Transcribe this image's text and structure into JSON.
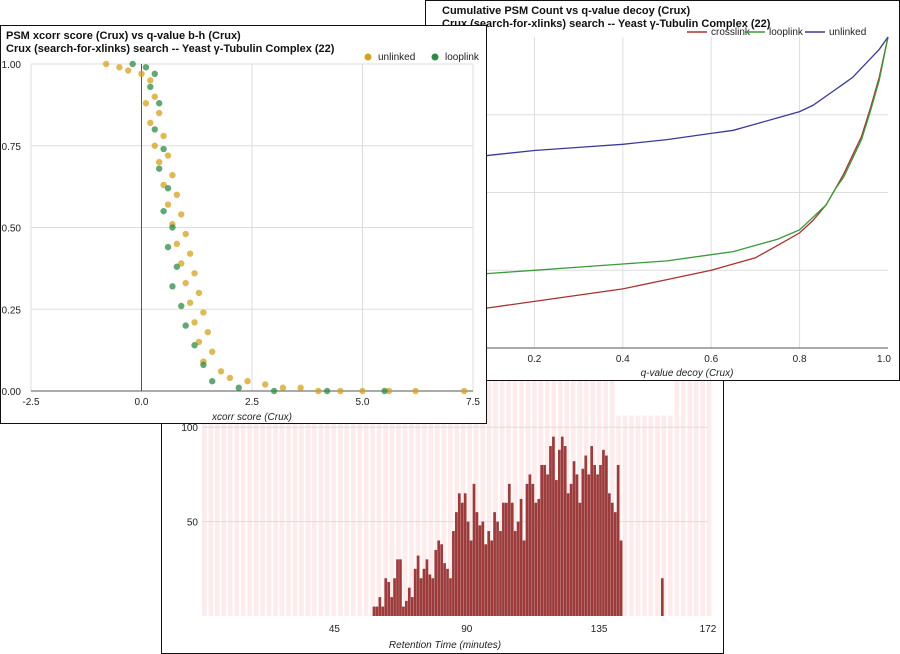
{
  "windows": {
    "histogram": {
      "xlabel": "Retention Time (minutes)",
      "xticks": [
        "45",
        "90",
        "135",
        "172"
      ],
      "yticks": [
        "100",
        "50"
      ]
    },
    "cumulative": {
      "title_line1": "Cumulative PSM Count vs q-value decoy (Crux)",
      "title_line2": "Crux (search-for-xlinks) search -- Yeast γ-Tubulin Complex (22)",
      "xlabel": "q-value decoy (Crux)",
      "xticks": [
        "0.2",
        "0.4",
        "0.6",
        "0.8",
        "1.0"
      ],
      "legend": [
        {
          "name": "crosslink",
          "color": "#a83232"
        },
        {
          "name": "looplink",
          "color": "#3a9a3a"
        },
        {
          "name": "unlinked",
          "color": "#3a3a96"
        }
      ]
    },
    "scatter": {
      "title_line1": "PSM xcorr score (Crux) vs q-value b-h (Crux)",
      "title_line2": "Crux (search-for-xlinks) search -- Yeast γ-Tubulin Complex (22)",
      "xlabel": "xcorr score (Crux)",
      "xticks": [
        "-2.5",
        "0.0",
        "2.5",
        "5.0",
        "7.5"
      ],
      "yticks": [
        "1.00",
        "0.75",
        "0.50",
        "0.25",
        "0.00"
      ],
      "legend": [
        {
          "name": "unlinked",
          "color": "#d4a21f"
        },
        {
          "name": "looplink",
          "color": "#2e8b46"
        }
      ]
    }
  },
  "chart_data": [
    {
      "type": "bar",
      "xlabel": "Retention Time (minutes)",
      "ylabel": "",
      "xlim": [
        0,
        172
      ],
      "ylim": [
        0,
        125
      ],
      "bar_color": "#9b3b3b",
      "background_color": "#fde4e4",
      "categories": [
        58,
        59,
        60,
        61,
        62,
        63,
        64,
        65,
        66,
        67,
        68,
        69,
        70,
        71,
        72,
        73,
        74,
        75,
        76,
        77,
        78,
        79,
        80,
        81,
        82,
        83,
        84,
        85,
        86,
        87,
        88,
        89,
        90,
        91,
        92,
        93,
        94,
        95,
        96,
        97,
        98,
        99,
        100,
        101,
        102,
        103,
        104,
        105,
        106,
        107,
        108,
        109,
        110,
        111,
        112,
        113,
        114,
        115,
        116,
        117,
        118,
        119,
        120,
        121,
        122,
        123,
        124,
        125,
        126,
        127,
        128,
        129,
        130,
        131,
        132,
        133,
        134,
        135,
        136,
        137,
        138,
        139,
        140,
        141,
        142,
        143,
        144,
        145,
        146,
        147,
        148,
        149,
        150,
        151,
        152,
        153,
        154,
        155,
        156,
        157,
        158,
        159,
        160,
        161,
        162,
        163,
        164
      ],
      "values": [
        5,
        5,
        10,
        5,
        20,
        18,
        10,
        20,
        30,
        30,
        5,
        8,
        15,
        10,
        25,
        32,
        20,
        25,
        30,
        22,
        20,
        35,
        40,
        38,
        28,
        25,
        20,
        45,
        55,
        65,
        60,
        65,
        50,
        40,
        70,
        55,
        48,
        50,
        38,
        45,
        40,
        55,
        50,
        45,
        60,
        60,
        70,
        60,
        45,
        50,
        62,
        40,
        70,
        75,
        70,
        60,
        62,
        80,
        80,
        75,
        90,
        95,
        72,
        88,
        95,
        90,
        65,
        70,
        82,
        75,
        60,
        78,
        85,
        75,
        90,
        80,
        75,
        80,
        88,
        85,
        65,
        60,
        55,
        80,
        40,
        0,
        0,
        0,
        0,
        0,
        0,
        0,
        0,
        0,
        0,
        0,
        0,
        0,
        20,
        0,
        0,
        0,
        0,
        0,
        0,
        0,
        0
      ]
    },
    {
      "type": "line",
      "title": "Cumulative PSM Count vs q-value decoy (Crux)",
      "subtitle": "Crux (search-for-xlinks) search -- Yeast γ-Tubulin Complex (22)",
      "xlabel": "q-value decoy (Crux)",
      "xlim": [
        0,
        1
      ],
      "ylim": [
        0,
        1
      ],
      "legend_position": "top-right",
      "series": [
        {
          "name": "crosslink",
          "color": "#a83232",
          "x": [
            0,
            0.05,
            0.1,
            0.2,
            0.3,
            0.4,
            0.5,
            0.6,
            0.65,
            0.7,
            0.75,
            0.8,
            0.83,
            0.86,
            0.88,
            0.9,
            0.92,
            0.94,
            0.96,
            0.98,
            1.0
          ],
          "y": [
            0.11,
            0.12,
            0.13,
            0.15,
            0.17,
            0.19,
            0.22,
            0.25,
            0.27,
            0.29,
            0.33,
            0.37,
            0.41,
            0.46,
            0.51,
            0.56,
            0.62,
            0.68,
            0.77,
            0.87,
            1.0
          ]
        },
        {
          "name": "looplink",
          "color": "#3a9a3a",
          "x": [
            0,
            0.05,
            0.1,
            0.2,
            0.3,
            0.4,
            0.5,
            0.6,
            0.65,
            0.7,
            0.75,
            0.8,
            0.83,
            0.86,
            0.88,
            0.9,
            0.92,
            0.94,
            0.96,
            0.98,
            1.0
          ],
          "y": [
            0.23,
            0.235,
            0.24,
            0.25,
            0.26,
            0.27,
            0.28,
            0.3,
            0.31,
            0.33,
            0.35,
            0.38,
            0.42,
            0.46,
            0.51,
            0.55,
            0.61,
            0.67,
            0.76,
            0.86,
            1.0
          ]
        },
        {
          "name": "unlinked",
          "color": "#3a3a96",
          "x": [
            0,
            0.05,
            0.1,
            0.2,
            0.3,
            0.4,
            0.5,
            0.6,
            0.65,
            0.7,
            0.75,
            0.8,
            0.83,
            0.86,
            0.88,
            0.9,
            0.92,
            0.94,
            0.96,
            0.98,
            1.0
          ],
          "y": [
            0.6,
            0.61,
            0.62,
            0.635,
            0.645,
            0.655,
            0.67,
            0.69,
            0.7,
            0.72,
            0.74,
            0.76,
            0.78,
            0.81,
            0.83,
            0.85,
            0.87,
            0.9,
            0.93,
            0.96,
            1.0
          ]
        }
      ]
    },
    {
      "type": "scatter",
      "title": "PSM xcorr score (Crux) vs q-value b-h (Crux)",
      "subtitle": "Crux (search-for-xlinks) search -- Yeast γ-Tubulin Complex (22)",
      "xlabel": "xcorr score (Crux)",
      "xlim": [
        -2.5,
        7.5
      ],
      "ylim": [
        0,
        1
      ],
      "legend_position": "top-right",
      "series": [
        {
          "name": "unlinked",
          "color": "#d4a21f",
          "points": [
            [
              -0.8,
              1.0
            ],
            [
              -0.5,
              0.99
            ],
            [
              -0.3,
              0.98
            ],
            [
              0,
              0.97
            ],
            [
              0.2,
              0.95
            ],
            [
              0.3,
              0.9
            ],
            [
              0.1,
              0.88
            ],
            [
              0.4,
              0.85
            ],
            [
              0.2,
              0.82
            ],
            [
              0.5,
              0.78
            ],
            [
              0.3,
              0.75
            ],
            [
              0.6,
              0.72
            ],
            [
              0.4,
              0.7
            ],
            [
              0.7,
              0.66
            ],
            [
              0.5,
              0.63
            ],
            [
              0.8,
              0.6
            ],
            [
              0.6,
              0.57
            ],
            [
              0.9,
              0.54
            ],
            [
              0.7,
              0.51
            ],
            [
              1.0,
              0.48
            ],
            [
              0.8,
              0.45
            ],
            [
              1.1,
              0.42
            ],
            [
              0.9,
              0.39
            ],
            [
              1.2,
              0.36
            ],
            [
              1.0,
              0.33
            ],
            [
              1.3,
              0.3
            ],
            [
              1.1,
              0.27
            ],
            [
              1.4,
              0.24
            ],
            [
              1.2,
              0.21
            ],
            [
              1.5,
              0.18
            ],
            [
              1.3,
              0.15
            ],
            [
              1.6,
              0.12
            ],
            [
              1.4,
              0.09
            ],
            [
              1.8,
              0.06
            ],
            [
              2.0,
              0.04
            ],
            [
              2.4,
              0.03
            ],
            [
              2.8,
              0.02
            ],
            [
              3.2,
              0.01
            ],
            [
              3.6,
              0.01
            ],
            [
              4.0,
              0.0
            ],
            [
              4.5,
              0.0
            ],
            [
              5.0,
              0.0
            ],
            [
              5.6,
              0.0
            ],
            [
              6.2,
              0.0
            ],
            [
              7.3,
              0.0
            ]
          ]
        },
        {
          "name": "looplink",
          "color": "#2e8b46",
          "points": [
            [
              -0.2,
              1.0
            ],
            [
              0.1,
              0.99
            ],
            [
              0.3,
              0.97
            ],
            [
              0.2,
              0.93
            ],
            [
              0.4,
              0.88
            ],
            [
              0.3,
              0.8
            ],
            [
              0.5,
              0.74
            ],
            [
              0.4,
              0.68
            ],
            [
              0.6,
              0.62
            ],
            [
              0.5,
              0.55
            ],
            [
              0.7,
              0.5
            ],
            [
              0.6,
              0.44
            ],
            [
              0.8,
              0.38
            ],
            [
              0.7,
              0.32
            ],
            [
              0.9,
              0.26
            ],
            [
              1.0,
              0.2
            ],
            [
              1.2,
              0.14
            ],
            [
              1.4,
              0.08
            ],
            [
              1.6,
              0.03
            ],
            [
              2.2,
              0.01
            ],
            [
              3.0,
              0.0
            ],
            [
              4.2,
              0.0
            ],
            [
              5.5,
              0.0
            ]
          ]
        }
      ]
    }
  ]
}
